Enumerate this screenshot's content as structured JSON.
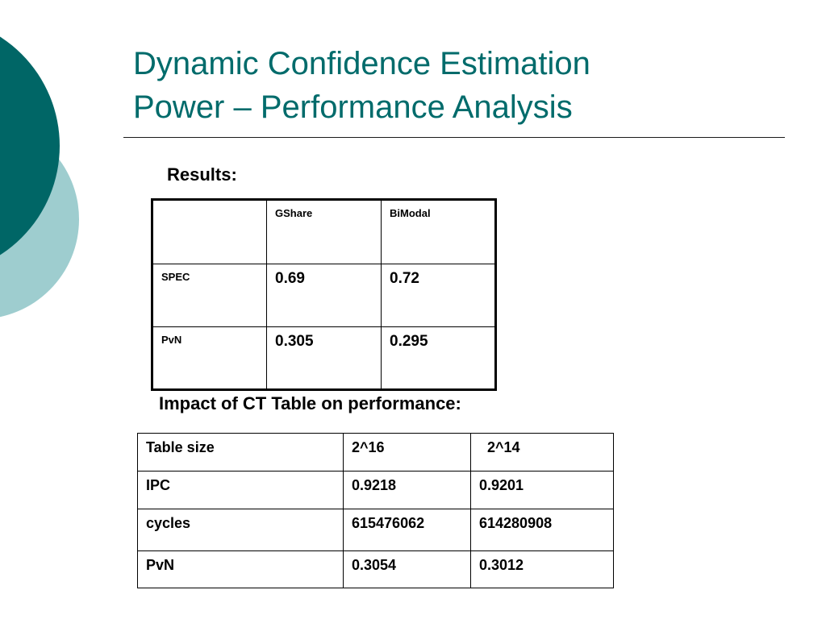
{
  "title": {
    "line1": "Dynamic Confidence Estimation",
    "line2": "Power – Performance Analysis"
  },
  "results": {
    "heading": "Results:",
    "columns": [
      "",
      "GShare",
      "BiModal"
    ],
    "rows": [
      {
        "label": "SPEC",
        "gshare": "0.69",
        "bimodal": "0.72"
      },
      {
        "label": "PvN",
        "gshare": "0.305",
        "bimodal": "0.295"
      }
    ]
  },
  "impact": {
    "heading": "Impact of CT Table on performance:",
    "rows": [
      {
        "label": "Table size",
        "col1": "2^16",
        "col2": "  2^14"
      },
      {
        "label": "IPC",
        "col1": "0.9218",
        "col2": "0.9201"
      },
      {
        "label": "cycles",
        "col1": "615476062",
        "col2": "614280908"
      },
      {
        "label": "PvN",
        "col1": "0.3054",
        "col2": "0.3012"
      }
    ]
  },
  "colors": {
    "title": "#006b6b",
    "circle_dark": "#006666",
    "circle_light": "#9ecdcf"
  }
}
